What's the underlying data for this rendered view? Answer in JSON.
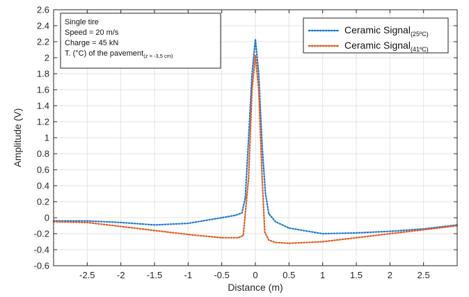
{
  "chart_data": {
    "type": "line",
    "xlabel": "Distance (m)",
    "ylabel": "Amplitude (V)",
    "xlim": [
      -3.0,
      3.0
    ],
    "ylim": [
      -0.6,
      2.6
    ],
    "xticks": [
      -2.5,
      -2,
      -1.5,
      -1,
      -0.5,
      0,
      0.5,
      1,
      1.5,
      2,
      2.5
    ],
    "xtick_labels": [
      "-2.5",
      "-2",
      "-1.5",
      "-1",
      "-0.5",
      "0",
      "0.5",
      "1",
      "1.5",
      "2",
      "2.5"
    ],
    "yticks": [
      -0.6,
      -0.4,
      -0.2,
      0,
      0.2,
      0.4,
      0.6,
      0.8,
      1,
      1.2,
      1.4,
      1.6,
      1.8,
      2,
      2.2,
      2.4,
      2.6
    ],
    "ytick_labels": [
      "-0.6",
      "-0.4",
      "-0.2",
      "0",
      "0.2",
      "0.4",
      "0.6",
      "0.8",
      "1",
      "1.2",
      "1.4",
      "1.6",
      "1.8",
      "2",
      "2.2",
      "2.4",
      "2.6"
    ],
    "grid": true,
    "legend_position": "top-right",
    "series": [
      {
        "name": "Ceramic Signal",
        "name_sub": "(25ºC)",
        "color": "#1f77d0",
        "line_style": "dotted",
        "x": [
          -3.0,
          -2.5,
          -2.0,
          -1.5,
          -1.0,
          -0.5,
          -0.3,
          -0.2,
          -0.15,
          -0.1,
          -0.05,
          0.0,
          0.05,
          0.1,
          0.15,
          0.2,
          0.3,
          0.5,
          1.0,
          1.5,
          2.0,
          2.5,
          3.0
        ],
        "y": [
          -0.04,
          -0.04,
          -0.06,
          -0.09,
          -0.07,
          0.0,
          0.03,
          0.06,
          0.25,
          1.0,
          1.8,
          2.23,
          1.8,
          0.9,
          0.3,
          0.05,
          -0.05,
          -0.13,
          -0.2,
          -0.19,
          -0.17,
          -0.14,
          -0.09
        ]
      },
      {
        "name": "Ceramic Signal",
        "name_sub": "(41ºC)",
        "color": "#e05a1e",
        "line_style": "dotted",
        "x": [
          -3.0,
          -2.5,
          -2.0,
          -1.5,
          -1.0,
          -0.5,
          -0.25,
          -0.18,
          -0.1,
          -0.05,
          0.0,
          0.05,
          0.1,
          0.14,
          0.2,
          0.3,
          0.5,
          1.0,
          1.5,
          2.0,
          2.5,
          3.0
        ],
        "y": [
          -0.05,
          -0.06,
          -0.11,
          -0.16,
          -0.21,
          -0.25,
          -0.25,
          -0.22,
          0.5,
          1.6,
          2.03,
          1.6,
          0.5,
          -0.18,
          -0.28,
          -0.31,
          -0.32,
          -0.3,
          -0.25,
          -0.2,
          -0.15,
          -0.1
        ]
      }
    ],
    "annotation_lines": [
      {
        "text": "Single tire"
      },
      {
        "text": "Speed = 20 m/s"
      },
      {
        "text": "Charge = 45 kN"
      },
      {
        "text": "T. (°C) of the pavement",
        "sub": "(z = -3,5 cm)"
      }
    ]
  }
}
